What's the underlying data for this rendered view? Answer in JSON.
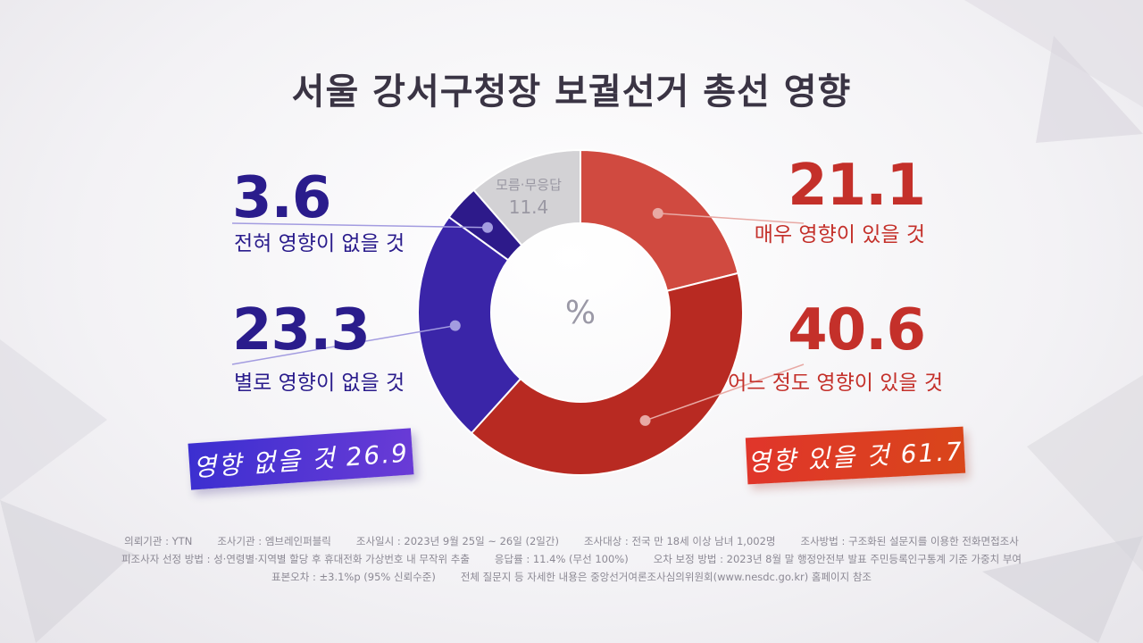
{
  "title": "서울 강서구청장 보궐선거 총선 영향",
  "center_unit": "%",
  "chart_data": {
    "type": "pie",
    "style": "donut",
    "unit": "%",
    "slices": [
      {
        "label": "매우 영향이 있을 것",
        "value": 21.1,
        "color": "#d04a40"
      },
      {
        "label": "어느 정도 영향이 있을 것",
        "value": 40.6,
        "color": "#b82a22"
      },
      {
        "label": "별로 영향이 없을 것",
        "value": 23.3,
        "color": "#3a25a8"
      },
      {
        "label": "전혀 영향이 없을 것",
        "value": 3.6,
        "color": "#2d1a8a"
      },
      {
        "label": "모름·무응답",
        "value": 11.4,
        "color": "#d3d2d5"
      }
    ]
  },
  "labels": {
    "r1_value": "21.1",
    "r1_text": "매우 영향이 있을 것",
    "r2_value": "40.6",
    "r2_text": "어느 정도 영향이 있을 것",
    "b1_value": "3.6",
    "b1_text": "전혀 영향이 없을 것",
    "b2_value": "23.3",
    "b2_text": "별로 영향이 없을 것",
    "dk_text": "모름·무응답",
    "dk_value": "11.4"
  },
  "badges": {
    "no_effect": "영향 없을 것 26.9",
    "effect": "영향 있을 것 61.7"
  },
  "footer": {
    "line1": [
      "의뢰기관 : YTN",
      "조사기관 : 엠브레인퍼블릭",
      "조사일시 : 2023년 9월 25일 ~ 26일 (2일간)",
      "조사대상 : 전국 만 18세 이상 남녀 1,002명",
      "조사방법 : 구조화된 설문지를 이용한 전화면접조사"
    ],
    "line2": [
      "피조사자 선정 방법 : 성·연령별·지역별 할당 후 휴대전화 가상번호 내 무작위 추출",
      "응답률 : 11.4% (무선 100%)",
      "오차 보정 방법 : 2023년 8월 말 행정안전부 발표 주민등록인구통계 기준 가중치 부여"
    ],
    "line3": [
      "표본오차 : ±3.1%p (95% 신뢰수준)",
      "전체 질문지 등 자세한 내용은 중앙선거여론조사심의위원회(www.nesdc.go.kr) 홈페이지 참조"
    ]
  },
  "colors": {
    "blue": "#2a1c8c",
    "red": "#c4302a",
    "gray": "#d3d2d5"
  }
}
